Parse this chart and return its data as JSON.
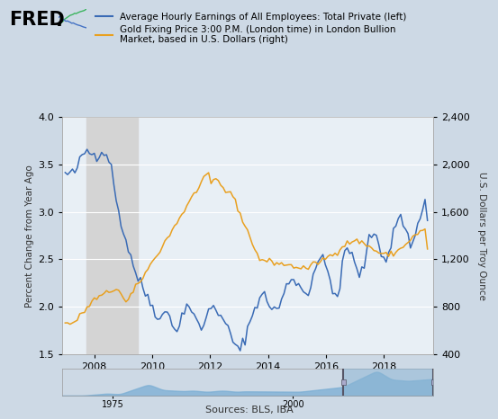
{
  "legend1": "Average Hourly Earnings of All Employees: Total Private (left)",
  "legend2": "Gold Fixing Price 3:00 P.M. (London time) in London Bullion\nMarket, based in U.S. Dollars (right)",
  "ylabel_left": "Percent Change from Year Ago",
  "ylabel_right": "U.S. Dollars per Troy Ounce",
  "source": "Sources: BLS, IBA",
  "bg_color": "#cdd9e5",
  "plot_bg_color": "#e8eff5",
  "recession_color": "#d4d4d4",
  "line1_color": "#3a6bb5",
  "line2_color": "#e8a020",
  "ylim_left": [
    1.5,
    4.0
  ],
  "ylim_right": [
    400,
    2400
  ],
  "yticks_left": [
    1.5,
    2.0,
    2.5,
    3.0,
    3.5,
    4.0
  ],
  "yticks_right": [
    400,
    800,
    1200,
    1600,
    2000,
    2400
  ],
  "recession_start": 2007.75,
  "recession_end": 2009.5,
  "xlim": [
    2006.9,
    2019.7
  ],
  "xticks": [
    2008,
    2010,
    2012,
    2014,
    2016,
    2018
  ]
}
